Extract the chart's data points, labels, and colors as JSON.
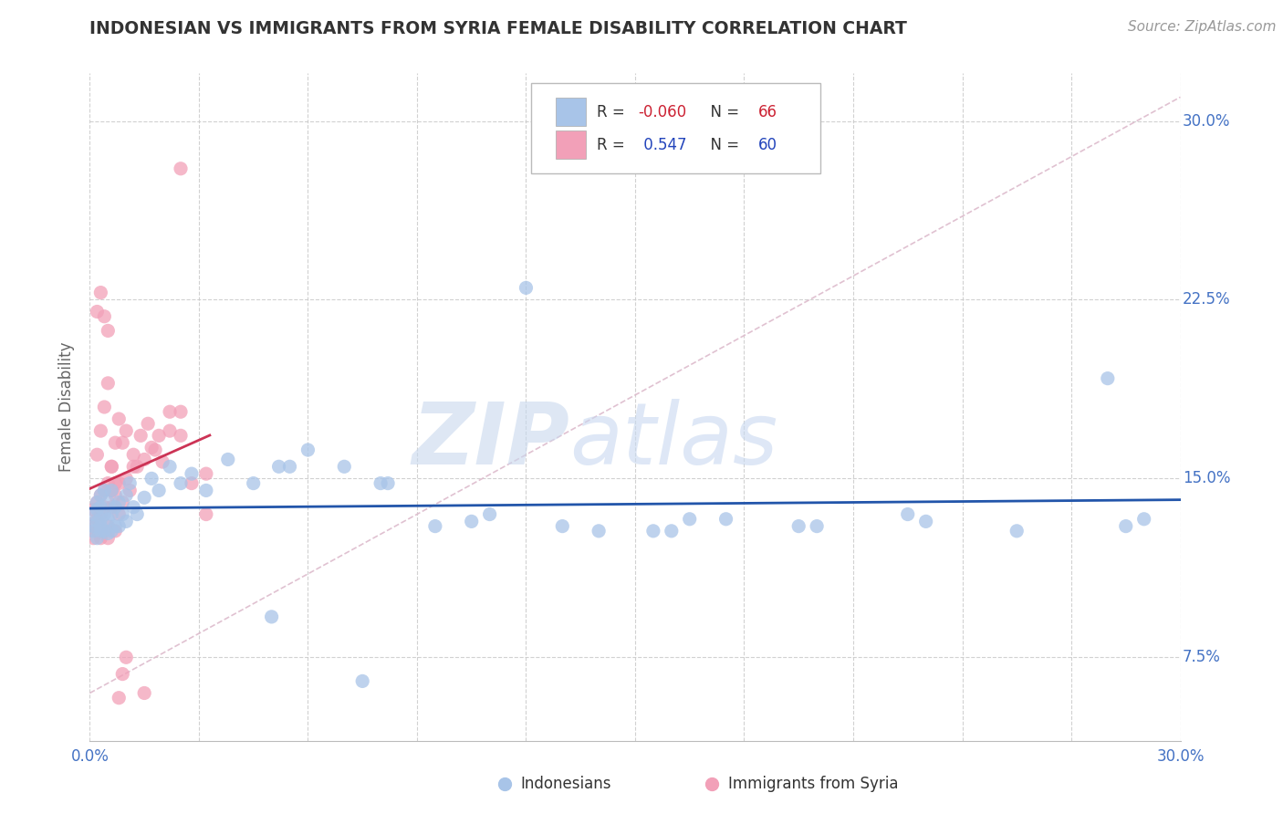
{
  "title": "INDONESIAN VS IMMIGRANTS FROM SYRIA FEMALE DISABILITY CORRELATION CHART",
  "source": "Source: ZipAtlas.com",
  "ylabel": "Female Disability",
  "xmin": 0.0,
  "xmax": 0.3,
  "ymin": 0.04,
  "ymax": 0.32,
  "color_blue": "#a8c4e8",
  "color_pink": "#f2a0b8",
  "line_blue": "#2255aa",
  "line_pink": "#cc3355",
  "diag_color": "#ddbbcc",
  "watermark_zip_color": "#c8d8ee",
  "watermark_atlas_color": "#c8d8f0",
  "indonesian_x": [
    0.001,
    0.001,
    0.001,
    0.002,
    0.002,
    0.002,
    0.002,
    0.003,
    0.003,
    0.003,
    0.003,
    0.003,
    0.004,
    0.004,
    0.004,
    0.005,
    0.005,
    0.005,
    0.006,
    0.006,
    0.006,
    0.007,
    0.007,
    0.008,
    0.008,
    0.009,
    0.01,
    0.01,
    0.011,
    0.012,
    0.013,
    0.015,
    0.017,
    0.019,
    0.022,
    0.025,
    0.028,
    0.032,
    0.038,
    0.045,
    0.052,
    0.06,
    0.07,
    0.082,
    0.095,
    0.11,
    0.13,
    0.155,
    0.175,
    0.2,
    0.225,
    0.255,
    0.28,
    0.055,
    0.08,
    0.105,
    0.14,
    0.165,
    0.195,
    0.23,
    0.05,
    0.075,
    0.12,
    0.16,
    0.29,
    0.285
  ],
  "indonesian_y": [
    0.13,
    0.135,
    0.128,
    0.132,
    0.137,
    0.14,
    0.125,
    0.13,
    0.143,
    0.138,
    0.128,
    0.133,
    0.145,
    0.135,
    0.128,
    0.14,
    0.133,
    0.127,
    0.145,
    0.135,
    0.128,
    0.138,
    0.13,
    0.14,
    0.13,
    0.135,
    0.143,
    0.132,
    0.148,
    0.138,
    0.135,
    0.142,
    0.15,
    0.145,
    0.155,
    0.148,
    0.152,
    0.145,
    0.158,
    0.148,
    0.155,
    0.162,
    0.155,
    0.148,
    0.13,
    0.135,
    0.13,
    0.128,
    0.133,
    0.13,
    0.135,
    0.128,
    0.192,
    0.155,
    0.148,
    0.132,
    0.128,
    0.133,
    0.13,
    0.132,
    0.092,
    0.065,
    0.23,
    0.128,
    0.133,
    0.13
  ],
  "syria_x": [
    0.001,
    0.001,
    0.001,
    0.002,
    0.002,
    0.002,
    0.003,
    0.003,
    0.003,
    0.004,
    0.004,
    0.005,
    0.005,
    0.005,
    0.006,
    0.006,
    0.007,
    0.007,
    0.008,
    0.008,
    0.009,
    0.01,
    0.011,
    0.012,
    0.013,
    0.015,
    0.017,
    0.019,
    0.022,
    0.025,
    0.028,
    0.032,
    0.002,
    0.003,
    0.004,
    0.005,
    0.006,
    0.007,
    0.008,
    0.009,
    0.01,
    0.012,
    0.014,
    0.016,
    0.018,
    0.02,
    0.022,
    0.025,
    0.002,
    0.003,
    0.004,
    0.005,
    0.006,
    0.007,
    0.008,
    0.009,
    0.01,
    0.015,
    0.025,
    0.032
  ],
  "syria_y": [
    0.13,
    0.137,
    0.125,
    0.133,
    0.14,
    0.128,
    0.135,
    0.143,
    0.125,
    0.138,
    0.145,
    0.13,
    0.148,
    0.125,
    0.138,
    0.155,
    0.143,
    0.128,
    0.148,
    0.135,
    0.14,
    0.15,
    0.145,
    0.16,
    0.155,
    0.158,
    0.163,
    0.168,
    0.178,
    0.168,
    0.148,
    0.152,
    0.16,
    0.17,
    0.18,
    0.19,
    0.155,
    0.165,
    0.175,
    0.165,
    0.17,
    0.155,
    0.168,
    0.173,
    0.162,
    0.157,
    0.17,
    0.178,
    0.22,
    0.228,
    0.218,
    0.212,
    0.145,
    0.148,
    0.058,
    0.068,
    0.075,
    0.06,
    0.28,
    0.135
  ]
}
